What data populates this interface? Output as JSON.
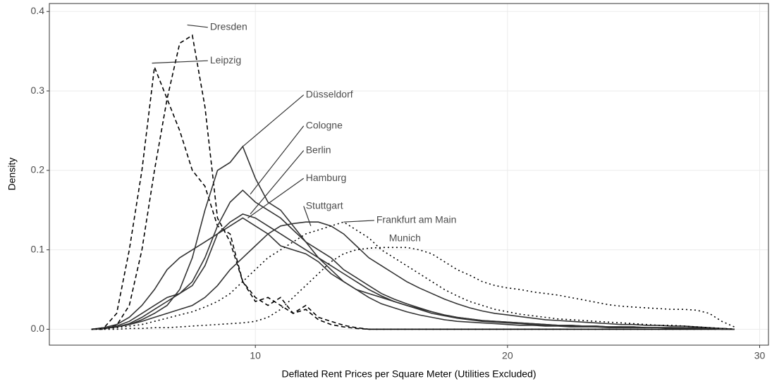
{
  "chart_data": {
    "type": "line",
    "xlabel": "Deflated Rent Prices per Square Meter (Utilities Excluded)",
    "ylabel": "Density",
    "xlim": [
      1.83,
      30.35
    ],
    "ylim": [
      -0.02,
      0.41
    ],
    "xticks": [
      10,
      20,
      30
    ],
    "yticks": [
      {
        "value": 0,
        "label": "0.0"
      },
      {
        "value": 0.1,
        "label": "0.1"
      },
      {
        "value": 0.2,
        "label": "0.2"
      },
      {
        "value": 0.3,
        "label": "0.3"
      },
      {
        "value": 0.4,
        "label": "0.4"
      }
    ],
    "grid": true,
    "x": [
      3.5,
      4,
      4.5,
      5,
      5.5,
      6,
      6.5,
      7,
      7.5,
      8,
      8.5,
      9,
      9.5,
      10,
      10.5,
      11,
      11.5,
      12,
      12.5,
      13,
      13.5,
      14,
      14.5,
      15,
      15.5,
      16,
      16.5,
      17,
      17.5,
      18,
      18.5,
      19,
      19.5,
      20,
      20.5,
      21,
      21.5,
      22,
      22.5,
      23,
      23.5,
      24,
      24.5,
      25,
      25.5,
      26,
      26.5,
      27,
      27.5,
      28,
      28.5,
      29
    ],
    "series": [
      {
        "name": "Dresden",
        "color": "#000000",
        "linestyle": "dashed",
        "values": [
          0,
          0,
          0.005,
          0.03,
          0.1,
          0.2,
          0.29,
          0.36,
          0.37,
          0.28,
          0.14,
          0.11,
          0.06,
          0.035,
          0.04,
          0.03,
          0.02,
          0.025,
          0.012,
          0.006,
          0.003,
          0.001,
          0,
          0,
          0,
          0,
          0,
          0,
          0,
          0,
          0,
          0,
          0,
          0,
          0,
          0,
          0,
          0,
          0,
          0,
          0,
          0,
          0,
          0,
          0,
          0,
          0,
          0,
          0,
          0,
          0,
          0
        ]
      },
      {
        "name": "Leipzig",
        "color": "#000000",
        "linestyle": "dashed",
        "values": [
          0,
          0.002,
          0.02,
          0.1,
          0.2,
          0.33,
          0.29,
          0.25,
          0.2,
          0.18,
          0.13,
          0.12,
          0.06,
          0.04,
          0.03,
          0.04,
          0.02,
          0.03,
          0.015,
          0.01,
          0.005,
          0.002,
          0,
          0,
          0,
          0,
          0,
          0,
          0,
          0,
          0,
          0,
          0,
          0,
          0,
          0,
          0,
          0,
          0,
          0,
          0,
          0,
          0,
          0,
          0,
          0,
          0,
          0,
          0,
          0,
          0,
          0
        ]
      },
      {
        "name": "Düsseldorf",
        "color": "#333333",
        "linestyle": "solid",
        "values": [
          0,
          0.001,
          0.003,
          0.006,
          0.012,
          0.02,
          0.03,
          0.05,
          0.09,
          0.15,
          0.2,
          0.21,
          0.23,
          0.19,
          0.16,
          0.15,
          0.13,
          0.11,
          0.09,
          0.075,
          0.06,
          0.05,
          0.04,
          0.032,
          0.027,
          0.022,
          0.018,
          0.015,
          0.012,
          0.01,
          0.009,
          0.008,
          0.007,
          0.006,
          0.005,
          0.005,
          0.004,
          0.004,
          0.003,
          0.003,
          0.003,
          0.002,
          0.002,
          0.002,
          0.002,
          0.002,
          0.001,
          0.001,
          0.001,
          0.001,
          0,
          0
        ]
      },
      {
        "name": "Cologne",
        "color": "#333333",
        "linestyle": "solid",
        "values": [
          0,
          0.001,
          0.003,
          0.007,
          0.015,
          0.025,
          0.035,
          0.045,
          0.06,
          0.09,
          0.13,
          0.16,
          0.175,
          0.16,
          0.15,
          0.14,
          0.125,
          0.11,
          0.1,
          0.09,
          0.075,
          0.065,
          0.055,
          0.045,
          0.038,
          0.032,
          0.027,
          0.022,
          0.018,
          0.015,
          0.013,
          0.011,
          0.01,
          0.009,
          0.008,
          0.007,
          0.006,
          0.005,
          0.005,
          0.004,
          0.004,
          0.003,
          0.003,
          0.003,
          0.002,
          0.002,
          0.002,
          0.002,
          0.002,
          0.001,
          0.001,
          0
        ]
      },
      {
        "name": "Berlin",
        "color": "#333333",
        "linestyle": "solid",
        "values": [
          0,
          0.002,
          0.006,
          0.015,
          0.03,
          0.05,
          0.075,
          0.09,
          0.1,
          0.11,
          0.12,
          0.135,
          0.145,
          0.14,
          0.13,
          0.12,
          0.11,
          0.1,
          0.09,
          0.08,
          0.07,
          0.06,
          0.05,
          0.042,
          0.035,
          0.03,
          0.025,
          0.02,
          0.017,
          0.014,
          0.012,
          0.01,
          0.009,
          0.008,
          0.007,
          0.006,
          0.005,
          0.005,
          0.004,
          0.004,
          0.003,
          0.003,
          0.003,
          0.002,
          0.002,
          0.002,
          0.002,
          0.001,
          0.001,
          0.001,
          0.001,
          0
        ]
      },
      {
        "name": "Hamburg",
        "color": "#333333",
        "linestyle": "solid",
        "values": [
          0,
          0.001,
          0.004,
          0.01,
          0.02,
          0.03,
          0.04,
          0.045,
          0.055,
          0.08,
          0.12,
          0.13,
          0.14,
          0.13,
          0.12,
          0.105,
          0.1,
          0.095,
          0.085,
          0.07,
          0.06,
          0.05,
          0.045,
          0.04,
          0.035,
          0.03,
          0.026,
          0.022,
          0.018,
          0.015,
          0.013,
          0.011,
          0.01,
          0.009,
          0.008,
          0.007,
          0.006,
          0.005,
          0.005,
          0.004,
          0.004,
          0.003,
          0.003,
          0.003,
          0.002,
          0.002,
          0.002,
          0.002,
          0.001,
          0.001,
          0.001,
          0
        ]
      },
      {
        "name": "Stuttgart",
        "color": "#333333",
        "linestyle": "solid",
        "values": [
          0,
          0.001,
          0.003,
          0.006,
          0.01,
          0.015,
          0.02,
          0.025,
          0.03,
          0.04,
          0.055,
          0.075,
          0.09,
          0.105,
          0.12,
          0.13,
          0.133,
          0.135,
          0.135,
          0.13,
          0.12,
          0.105,
          0.09,
          0.08,
          0.07,
          0.06,
          0.052,
          0.045,
          0.038,
          0.032,
          0.027,
          0.023,
          0.02,
          0.018,
          0.016,
          0.014,
          0.012,
          0.011,
          0.01,
          0.009,
          0.008,
          0.007,
          0.006,
          0.006,
          0.005,
          0.005,
          0.004,
          0.004,
          0.003,
          0.002,
          0.001,
          0
        ]
      },
      {
        "name": "Frankfurt am Main",
        "color": "#000000",
        "linestyle": "dotted",
        "values": [
          0,
          0.001,
          0.002,
          0.004,
          0.006,
          0.01,
          0.014,
          0.018,
          0.022,
          0.028,
          0.035,
          0.045,
          0.06,
          0.075,
          0.09,
          0.1,
          0.11,
          0.12,
          0.125,
          0.13,
          0.135,
          0.125,
          0.115,
          0.1,
          0.09,
          0.08,
          0.07,
          0.06,
          0.05,
          0.042,
          0.035,
          0.03,
          0.025,
          0.022,
          0.019,
          0.017,
          0.015,
          0.013,
          0.012,
          0.011,
          0.01,
          0.009,
          0.008,
          0.007,
          0.006,
          0.005,
          0.005,
          0.004,
          0.003,
          0.002,
          0.001,
          0
        ]
      },
      {
        "name": "Munich",
        "color": "#000000",
        "linestyle": "dotted",
        "values": [
          0,
          0,
          0,
          0.001,
          0.001,
          0.002,
          0.002,
          0.003,
          0.004,
          0.005,
          0.006,
          0.007,
          0.008,
          0.01,
          0.015,
          0.025,
          0.04,
          0.055,
          0.07,
          0.085,
          0.095,
          0.1,
          0.102,
          0.103,
          0.103,
          0.103,
          0.1,
          0.095,
          0.085,
          0.075,
          0.068,
          0.06,
          0.055,
          0.052,
          0.05,
          0.047,
          0.045,
          0.043,
          0.04,
          0.037,
          0.034,
          0.031,
          0.029,
          0.028,
          0.027,
          0.026,
          0.025,
          0.025,
          0.024,
          0.02,
          0.01,
          0.003
        ]
      }
    ]
  }
}
